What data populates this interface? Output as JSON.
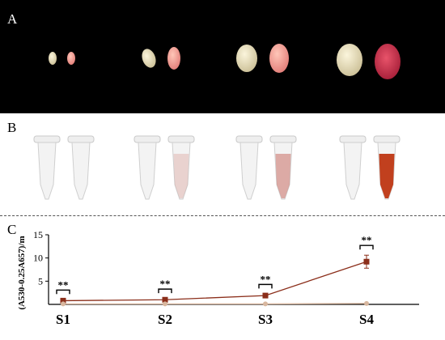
{
  "panels": {
    "a_label": "A",
    "b_label": "B",
    "c_label": "C"
  },
  "colors": {
    "series_red": "#8b2e1a",
    "series_white": "#d8b79f",
    "seed_white": "#e9dfc2",
    "seed_red": "#d9556a"
  },
  "chart_data": {
    "type": "line",
    "categories": [
      "S1",
      "S2",
      "S3",
      "S4"
    ],
    "ylabel": "(A530-0.25A657)/m",
    "ylim": [
      0,
      15
    ],
    "yticks": [
      5,
      10,
      15
    ],
    "series": [
      {
        "values": [
          0.8,
          1.0,
          1.9,
          9.2
        ],
        "errors": [
          0.2,
          0.2,
          0.3,
          1.4
        ],
        "marker": "square"
      },
      {
        "values": [
          0.1,
          0.1,
          0.1,
          0.2
        ],
        "errors": [
          0,
          0,
          0,
          0
        ],
        "marker": "circle"
      }
    ],
    "annotations": [
      "**",
      "**",
      "**",
      "**"
    ]
  }
}
